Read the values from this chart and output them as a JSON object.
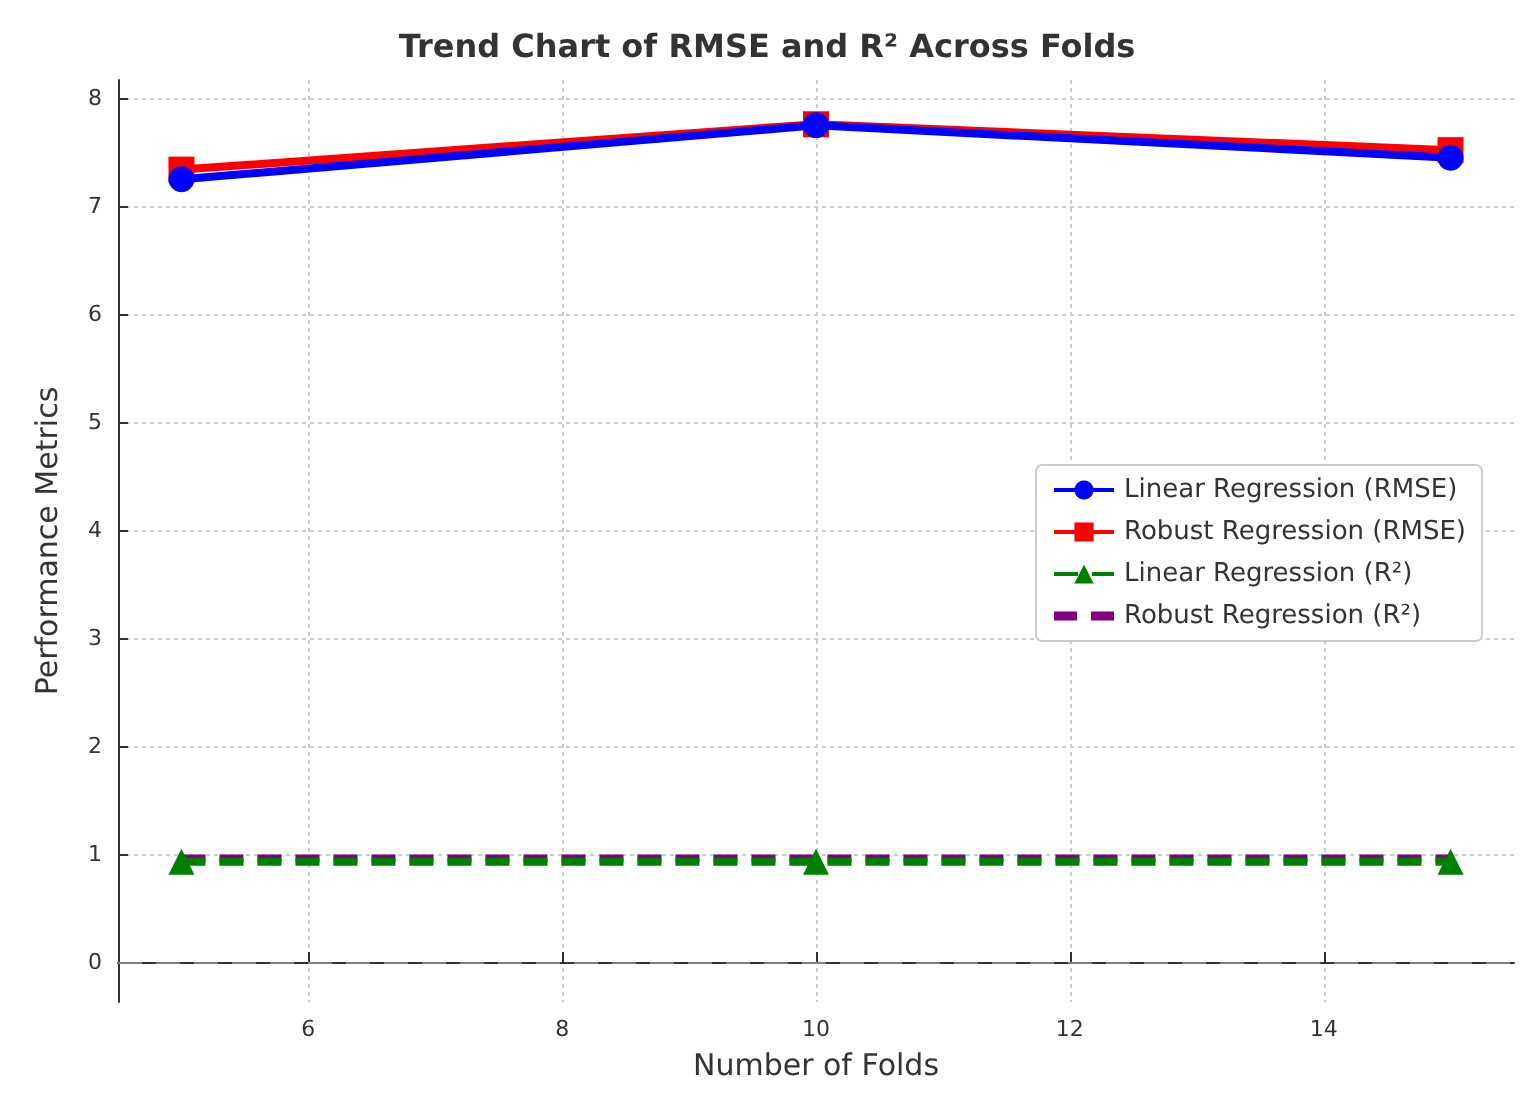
{
  "chart_data": {
    "type": "line",
    "title": "Trend Chart of RMSE and R² Across Folds",
    "xlabel": "Number of Folds",
    "ylabel": "Performance Metrics",
    "x": [
      5,
      10,
      15
    ],
    "series": [
      {
        "name": "Linear Regression (RMSE)",
        "color": "#0000ff",
        "values": [
          7.25,
          7.75,
          7.45
        ],
        "marker": "circle",
        "line_style": "solid"
      },
      {
        "name": "Robust Regression (RMSE)",
        "color": "#ff0000",
        "values": [
          7.34,
          7.76,
          7.52
        ],
        "marker": "square",
        "line_style": "solid"
      },
      {
        "name": "Linear Regression (R²)",
        "color": "#008000",
        "values": [
          0.93,
          0.93,
          0.93
        ],
        "marker": "triangle",
        "line_style": "dashed"
      },
      {
        "name": "Robust Regression (R²)",
        "color": "#800080",
        "values": [
          0.96,
          0.96,
          0.96
        ],
        "marker": "none",
        "line_style": "dashed"
      }
    ],
    "xlim": [
      4.5,
      15.5
    ],
    "xticks": [
      6,
      8,
      10,
      12,
      14
    ],
    "ylim": [
      -0.37,
      8.17
    ],
    "yticks": [
      0,
      1,
      2,
      3,
      4,
      5,
      6,
      7,
      8
    ],
    "ref_lines": [
      {
        "axis": "y",
        "value": 0,
        "color": "#808080",
        "line_style": "dashed"
      }
    ],
    "grid": true,
    "legend": "right"
  }
}
